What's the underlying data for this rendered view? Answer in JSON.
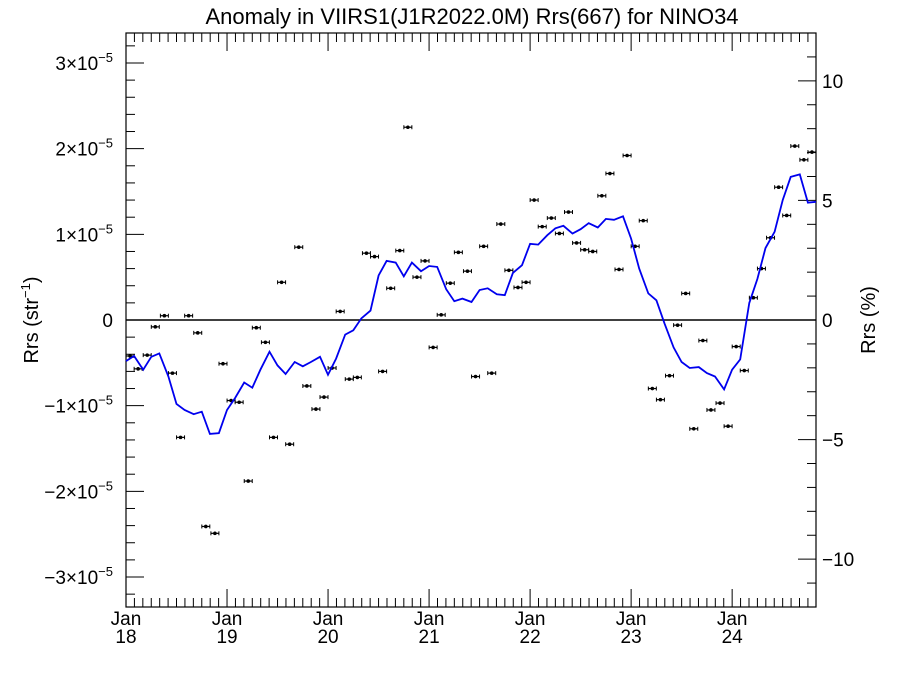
{
  "chart_data": {
    "type": "line",
    "title": "Anomaly in VIIRS1(J1R2022.0M) Rrs(667) for NINO34",
    "ylabel_left": "Rrs (str",
    "ylabel_left_sup": "−1",
    "ylabel_left_close": ")",
    "ylabel_right": "Rrs (%)",
    "x_unit": "year",
    "xlim": [
      2018.0,
      2024.83
    ],
    "ylim_left": [
      -3.35e-05,
      3.35e-05
    ],
    "ylim_right": [
      -12,
      12
    ],
    "grid": false,
    "left_ticks": [
      {
        "value": 3e-05,
        "mant": "3×10",
        "exp": "−5"
      },
      {
        "value": 2e-05,
        "mant": "2×10",
        "exp": "−5"
      },
      {
        "value": 1e-05,
        "mant": "1×10",
        "exp": "−5"
      },
      {
        "value": 0,
        "mant": "0",
        "exp": ""
      },
      {
        "value": -1e-05,
        "mant": "−1×10",
        "exp": "−5"
      },
      {
        "value": -2e-05,
        "mant": "−2×10",
        "exp": "−5"
      },
      {
        "value": -3e-05,
        "mant": "−3×10",
        "exp": "−5"
      }
    ],
    "right_ticks": [
      {
        "value": 10,
        "label": "10"
      },
      {
        "value": 5,
        "label": "5"
      },
      {
        "value": 0,
        "label": "0"
      },
      {
        "value": -5,
        "label": "−5"
      },
      {
        "value": -10,
        "label": "−10"
      }
    ],
    "x_ticks": [
      {
        "value": 2018,
        "month": "Jan",
        "year": "18"
      },
      {
        "value": 2019,
        "month": "Jan",
        "year": "19"
      },
      {
        "value": 2020,
        "month": "Jan",
        "year": "20"
      },
      {
        "value": 2021,
        "month": "Jan",
        "year": "21"
      },
      {
        "value": 2022,
        "month": "Jan",
        "year": "22"
      },
      {
        "value": 2023,
        "month": "Jan",
        "year": "23"
      },
      {
        "value": 2024,
        "month": "Jan",
        "year": "24"
      }
    ],
    "series": [
      {
        "kind": "points_with_errorbars",
        "color": "#000000",
        "x": [
          2018.04,
          2018.12,
          2018.21,
          2018.29,
          2018.38,
          2018.46,
          2018.54,
          2018.62,
          2018.71,
          2018.79,
          2018.88,
          2018.96,
          2019.04,
          2019.12,
          2019.21,
          2019.29,
          2019.38,
          2019.46,
          2019.54,
          2019.62,
          2019.71,
          2019.79,
          2019.88,
          2019.96,
          2020.04,
          2020.12,
          2020.21,
          2020.29,
          2020.38,
          2020.46,
          2020.54,
          2020.62,
          2020.71,
          2020.79,
          2020.88,
          2020.96,
          2021.04,
          2021.12,
          2021.21,
          2021.29,
          2021.38,
          2021.46,
          2021.54,
          2021.62,
          2021.71,
          2021.79,
          2021.88,
          2021.96,
          2022.04,
          2022.12,
          2022.21,
          2022.29,
          2022.38,
          2022.46,
          2022.54,
          2022.62,
          2022.71,
          2022.79,
          2022.88,
          2022.96,
          2023.04,
          2023.12,
          2023.21,
          2023.29,
          2023.38,
          2023.46,
          2023.54,
          2023.62,
          2023.71,
          2023.79,
          2023.88,
          2023.96,
          2024.04,
          2024.12,
          2024.21,
          2024.29,
          2024.38,
          2024.46,
          2024.54,
          2024.62,
          2024.71,
          2024.79
        ],
        "y": [
          -4.2e-06,
          -5.7e-06,
          -4.1e-06,
          -8e-07,
          5e-07,
          -6.2e-06,
          -1.37e-05,
          5e-07,
          -1.5e-06,
          -2.41e-05,
          -2.49e-05,
          -5.1e-06,
          -9.4e-06,
          -9.6e-06,
          -1.88e-05,
          -9e-07,
          -2.6e-06,
          -1.37e-05,
          4.4e-06,
          -1.45e-05,
          8.5e-06,
          -7.7e-06,
          -1.04e-05,
          -9e-06,
          -5.6e-06,
          1e-06,
          -6.9e-06,
          -6.7e-06,
          7.8e-06,
          7.4e-06,
          -6e-06,
          3.7e-06,
          8.1e-06,
          2.25e-05,
          5e-06,
          6.9e-06,
          -3.2e-06,
          6e-07,
          4.3e-06,
          7.9e-06,
          5.7e-06,
          -6.6e-06,
          8.6e-06,
          -6.2e-06,
          1.12e-05,
          5.8e-06,
          3.8e-06,
          4.4e-06,
          1.4e-05,
          1.09e-05,
          1.19e-05,
          1.01e-05,
          1.26e-05,
          9e-06,
          8.2e-06,
          8e-06,
          1.45e-05,
          1.71e-05,
          5.9e-06,
          1.92e-05,
          8.6e-06,
          1.16e-05,
          -8e-06,
          -9.3e-06,
          -6.5e-06,
          -6e-07,
          3.1e-06,
          -1.27e-05,
          -2.4e-06,
          -1.05e-05,
          -9.7e-06,
          -1.24e-05,
          -3.1e-06,
          -5.9e-06,
          2.6e-06,
          6e-06,
          9.6e-06,
          1.55e-05,
          1.22e-05,
          2.03e-05,
          1.87e-05,
          1.96e-05
        ]
      },
      {
        "kind": "line",
        "color": "#0000ee",
        "x": [
          2018.0,
          2018.08,
          2018.17,
          2018.25,
          2018.33,
          2018.42,
          2018.5,
          2018.58,
          2018.67,
          2018.75,
          2018.83,
          2018.92,
          2019.0,
          2019.08,
          2019.17,
          2019.25,
          2019.33,
          2019.42,
          2019.5,
          2019.58,
          2019.67,
          2019.75,
          2019.83,
          2019.92,
          2020.0,
          2020.08,
          2020.17,
          2020.25,
          2020.33,
          2020.42,
          2020.5,
          2020.58,
          2020.67,
          2020.75,
          2020.83,
          2020.92,
          2021.0,
          2021.08,
          2021.17,
          2021.25,
          2021.33,
          2021.42,
          2021.5,
          2021.58,
          2021.67,
          2021.75,
          2021.83,
          2021.92,
          2022.0,
          2022.08,
          2022.17,
          2022.25,
          2022.33,
          2022.42,
          2022.5,
          2022.58,
          2022.67,
          2022.75,
          2022.83,
          2022.92,
          2023.0,
          2023.08,
          2023.17,
          2023.25,
          2023.33,
          2023.42,
          2023.5,
          2023.58,
          2023.67,
          2023.75,
          2023.83,
          2023.92,
          2024.0,
          2024.08,
          2024.17,
          2024.25,
          2024.33,
          2024.42,
          2024.5,
          2024.58,
          2024.67,
          2024.75,
          2024.83
        ],
        "y": [
          -4.8e-06,
          -4.2e-06,
          -5.8e-06,
          -4.3e-06,
          -3.9e-06,
          -6.6e-06,
          -9.8e-06,
          -1.05e-05,
          -1.1e-05,
          -1.07e-05,
          -1.33e-05,
          -1.32e-05,
          -1.05e-05,
          -9.1e-06,
          -7.3e-06,
          -7.9e-06,
          -5.8e-06,
          -3.7e-06,
          -5.3e-06,
          -6.3e-06,
          -4.9e-06,
          -5.4e-06,
          -4.9e-06,
          -4.3e-06,
          -6.4e-06,
          -4.5e-06,
          -1.7e-06,
          -1.2e-06,
          2e-07,
          1.1e-06,
          5.2e-06,
          6.9e-06,
          6.7e-06,
          5.1e-06,
          6.7e-06,
          5.7e-06,
          6.3e-06,
          6.2e-06,
          3.6e-06,
          2.2e-06,
          2.5e-06,
          2.1e-06,
          3.5e-06,
          3.7e-06,
          3e-06,
          2.9e-06,
          5.5e-06,
          6.4e-06,
          8.9e-06,
          8.8e-06,
          9.9e-06,
          1.07e-05,
          1.1e-05,
          1.01e-05,
          1.06e-05,
          1.13e-05,
          1.08e-05,
          1.18e-05,
          1.17e-05,
          1.21e-05,
          9.5e-06,
          6e-06,
          3.1e-06,
          2.3e-06,
          -4e-07,
          -3.2e-06,
          -4.9e-06,
          -5.6e-06,
          -5.5e-06,
          -6.2e-06,
          -6.6e-06,
          -8.1e-06,
          -5.8e-06,
          -4.6e-06,
          2e-06,
          4.8e-06,
          8.4e-06,
          1.03e-05,
          1.4e-05,
          1.67e-05,
          1.7e-05,
          1.37e-05,
          1.38e-05
        ]
      }
    ]
  }
}
